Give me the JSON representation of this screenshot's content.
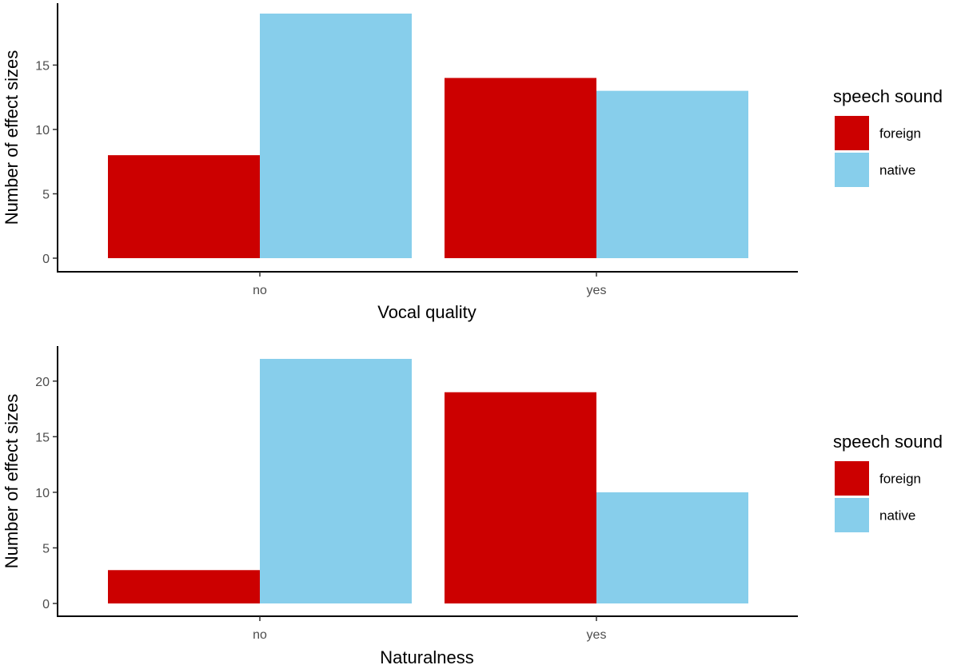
{
  "chart_data": [
    {
      "type": "bar",
      "categories": [
        "no",
        "yes"
      ],
      "series": [
        {
          "name": "foreign",
          "values": [
            8,
            14
          ],
          "color": "#CC0000"
        },
        {
          "name": "native",
          "values": [
            19,
            13
          ],
          "color": "#87CEEB"
        }
      ],
      "xlabel": "Vocal quality",
      "ylabel": "Number of effect sizes",
      "yticks": [
        0,
        5,
        10,
        15
      ],
      "ylim": [
        0,
        19
      ],
      "legend_title": "speech sound",
      "legend_position": "right",
      "grid": false
    },
    {
      "type": "bar",
      "categories": [
        "no",
        "yes"
      ],
      "series": [
        {
          "name": "foreign",
          "values": [
            3,
            19
          ],
          "color": "#CC0000"
        },
        {
          "name": "native",
          "values": [
            22,
            10
          ],
          "color": "#87CEEB"
        }
      ],
      "xlabel": "Naturalness",
      "ylabel": "Number of effect sizes",
      "yticks": [
        0,
        5,
        10,
        15,
        20
      ],
      "ylim": [
        0,
        22
      ],
      "legend_title": "speech sound",
      "legend_position": "right",
      "grid": false
    }
  ]
}
